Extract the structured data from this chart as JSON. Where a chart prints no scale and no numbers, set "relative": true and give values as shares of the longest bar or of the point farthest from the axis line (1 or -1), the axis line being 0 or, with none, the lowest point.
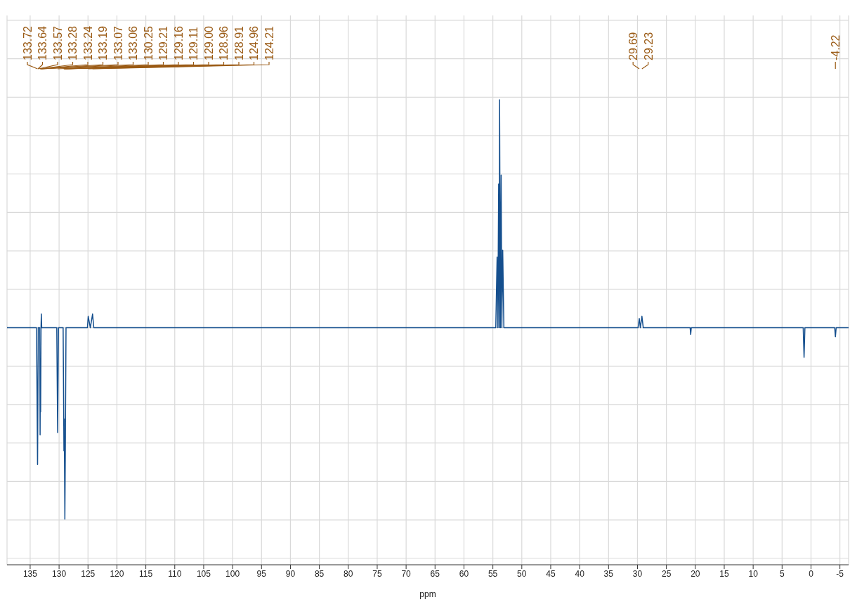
{
  "chart_data": {
    "type": "line",
    "relative": true,
    "xlabel": "ppm",
    "xlim": [
      139,
      -6.5
    ],
    "xticks": [
      135,
      130,
      125,
      120,
      115,
      110,
      105,
      100,
      95,
      90,
      85,
      80,
      75,
      70,
      65,
      60,
      55,
      50,
      45,
      40,
      35,
      30,
      25,
      20,
      15,
      10,
      5,
      0,
      -5
    ],
    "grid": true,
    "marker": "none",
    "line_style": "solid",
    "series": [
      {
        "color": "#154f8e",
        "x": [
          139,
          133.9,
          133.72,
          133.6,
          133.35,
          133.28,
          133.24,
          133.19,
          133.12,
          133.07,
          133.0,
          130.4,
          130.25,
          130.1,
          129.3,
          129.16,
          129.11,
          129.0,
          128.91,
          128.8,
          125.1,
          124.96,
          124.6,
          124.21,
          124.0,
          54.5,
          54.27,
          54.15,
          54.0,
          53.92,
          53.84,
          53.7,
          53.57,
          53.45,
          53.3,
          53.1,
          29.9,
          29.69,
          29.5,
          29.23,
          29.0,
          20.9,
          20.8,
          20.7,
          1.35,
          1.2,
          1.05,
          -4.1,
          -4.22,
          -4.35,
          -6.5
        ],
        "values": [
          0,
          0,
          -0.6,
          0,
          0,
          -0.47,
          -0.2,
          -0.37,
          0,
          0.06,
          0,
          0,
          -0.46,
          0,
          0,
          -0.54,
          -0.4,
          -0.84,
          -0.5,
          0,
          0,
          0.05,
          0,
          0.06,
          0,
          0,
          0.31,
          0,
          0.63,
          0,
          1,
          0,
          0.67,
          0,
          0.34,
          0,
          0,
          0.04,
          0,
          0.05,
          0,
          0,
          -0.03,
          0,
          0,
          -0.13,
          0,
          0,
          -0.04,
          0,
          0
        ]
      }
    ],
    "annotations": [
      {
        "text": "133.72",
        "x": 133.72
      },
      {
        "text": "133.64",
        "x": 133.64
      },
      {
        "text": "133.57",
        "x": 133.57
      },
      {
        "text": "133.28",
        "x": 133.28
      },
      {
        "text": "133.24",
        "x": 133.24
      },
      {
        "text": "133.19",
        "x": 133.19
      },
      {
        "text": "133.07",
        "x": 133.07
      },
      {
        "text": "133.06",
        "x": 133.06
      },
      {
        "text": "130.25",
        "x": 130.25
      },
      {
        "text": "129.21",
        "x": 129.21
      },
      {
        "text": "129.16",
        "x": 129.16
      },
      {
        "text": "129.11",
        "x": 129.11
      },
      {
        "text": "129.00",
        "x": 129.0
      },
      {
        "text": "128.96",
        "x": 128.96
      },
      {
        "text": "128.91",
        "x": 128.91
      },
      {
        "text": "124.96",
        "x": 124.96
      },
      {
        "text": "124.21",
        "x": 124.21
      },
      {
        "text": "29.69",
        "x": 29.69
      },
      {
        "text": "29.23",
        "x": 29.23
      },
      {
        "text": "-4.22",
        "x": -4.22
      }
    ]
  }
}
